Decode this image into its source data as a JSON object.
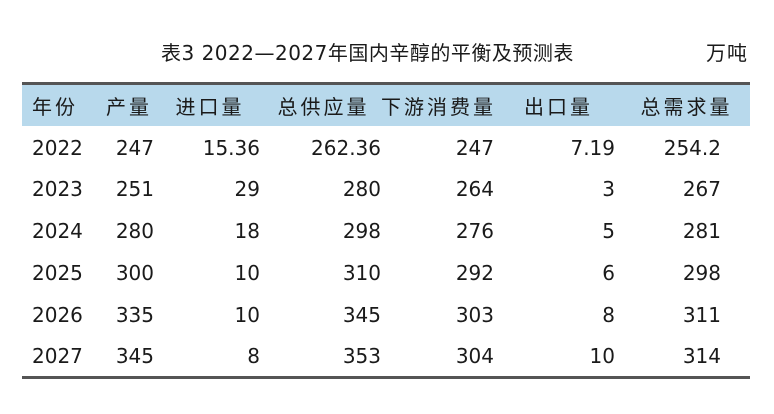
{
  "caption": {
    "title": "表3  2022—2027年国内辛醇的平衡及预测表",
    "unit": "万吨"
  },
  "table": {
    "headers": [
      "年份",
      "产量",
      "进口量",
      "总供应量",
      "下游消费量",
      "出口量",
      "总需求量"
    ],
    "rows": [
      [
        "2022",
        "247",
        "15.36",
        "262.36",
        "247",
        "7.19",
        "254.2"
      ],
      [
        "2023",
        "251",
        "29",
        "280",
        "264",
        "3",
        "267"
      ],
      [
        "2024",
        "280",
        "18",
        "298",
        "276",
        "5",
        "281"
      ],
      [
        "2025",
        "300",
        "10",
        "310",
        "292",
        "6",
        "298"
      ],
      [
        "2026",
        "335",
        "10",
        "345",
        "303",
        "8",
        "311"
      ],
      [
        "2027",
        "345",
        "8",
        "353",
        "304",
        "10",
        "314"
      ]
    ]
  },
  "colors": {
    "header_background": "#b8d9ec",
    "rule": "#555555"
  }
}
